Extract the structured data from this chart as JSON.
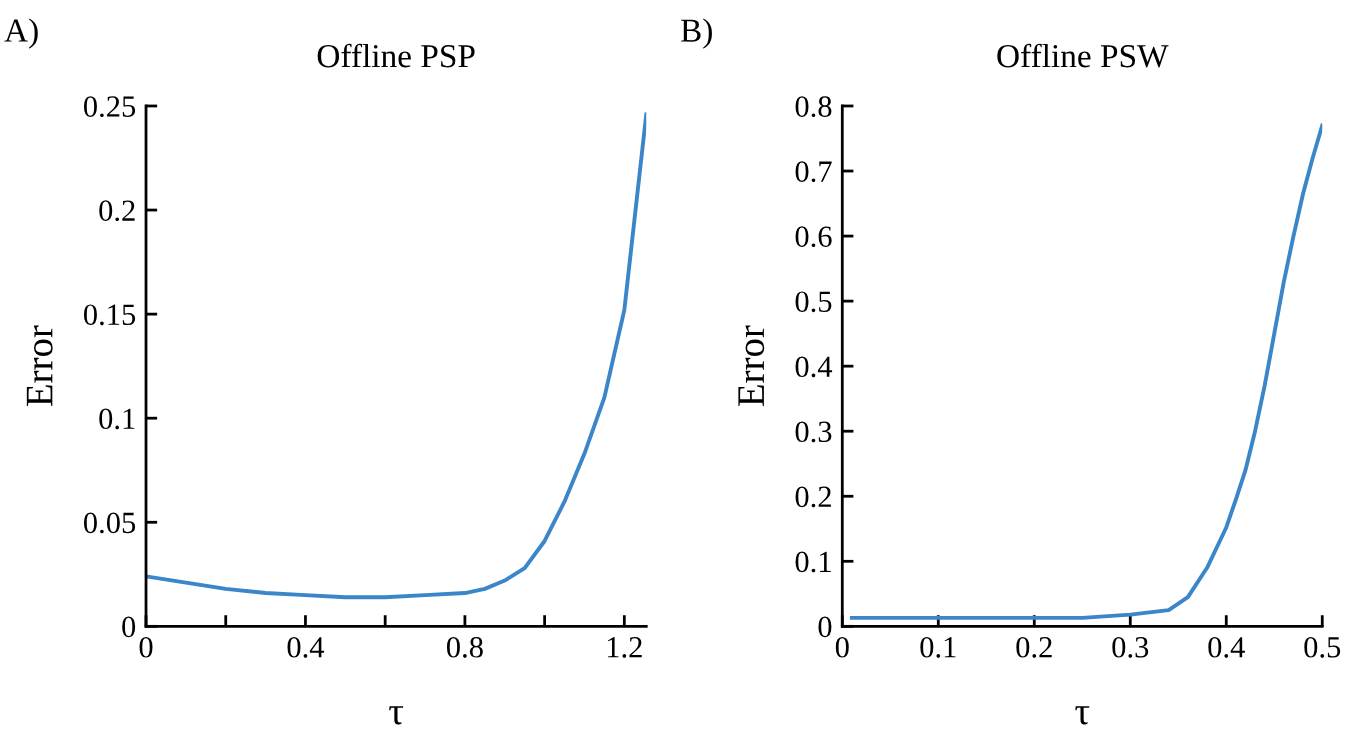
{
  "chart_data": [
    {
      "type": "line",
      "title": "Offline PSP",
      "xlabel": "τ",
      "ylabel": "Error",
      "annotations": [
        "A)"
      ],
      "x": [
        0,
        0.1,
        0.2,
        0.3,
        0.4,
        0.5,
        0.6,
        0.7,
        0.8,
        0.85,
        0.9,
        0.95,
        1.0,
        1.05,
        1.1,
        1.15,
        1.2,
        1.255
      ],
      "series": [
        {
          "color": "#3a86c8",
          "values": [
            0.024,
            0.021,
            0.018,
            0.016,
            0.015,
            0.014,
            0.014,
            0.015,
            0.016,
            0.018,
            0.022,
            0.028,
            0.041,
            0.06,
            0.083,
            0.11,
            0.152,
            0.246
          ]
        }
      ],
      "xlim": [
        0,
        1.255
      ],
      "xticks": [
        0,
        {
          "value": 0.2,
          "label": null
        },
        0.4,
        {
          "value": 0.6,
          "label": null
        },
        0.8,
        {
          "value": 1.0,
          "label": null
        },
        1.2
      ],
      "ylim": [
        0,
        0.25
      ],
      "yticks": [
        0,
        0.05,
        0.1,
        0.15,
        0.2,
        0.25
      ],
      "grid": false,
      "legend": false,
      "marker": "none",
      "line_style": "solid"
    },
    {
      "type": "line",
      "title": "Offline PSW",
      "xlabel": "τ",
      "ylabel": "Error",
      "annotations": [
        "B)"
      ],
      "x": [
        0.01,
        0.1,
        0.2,
        0.25,
        0.3,
        0.34,
        0.36,
        0.38,
        0.4,
        0.41,
        0.42,
        0.43,
        0.44,
        0.45,
        0.46,
        0.47,
        0.48,
        0.49,
        0.5
      ],
      "series": [
        {
          "color": "#3a86c8",
          "values": [
            0.013,
            0.013,
            0.013,
            0.013,
            0.018,
            0.025,
            0.045,
            0.09,
            0.152,
            0.195,
            0.24,
            0.3,
            0.37,
            0.45,
            0.53,
            0.6,
            0.665,
            0.72,
            0.77
          ]
        }
      ],
      "xlim": [
        0,
        0.5
      ],
      "xticks": [
        0,
        0.1,
        0.2,
        0.3,
        0.4,
        0.5
      ],
      "ylim": [
        0,
        0.8
      ],
      "yticks": [
        0,
        0.1,
        0.2,
        0.3,
        0.4,
        0.5,
        0.6,
        0.7,
        0.8
      ],
      "grid": false,
      "legend": false,
      "marker": "none",
      "line_style": "solid"
    }
  ]
}
